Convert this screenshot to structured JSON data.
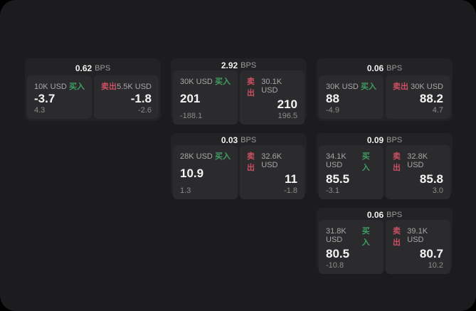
{
  "labels": {
    "bps_unit": "BPS",
    "buy": "买入",
    "sell": "卖出"
  },
  "colors": {
    "canvas": "#000000",
    "page_bg": "#1c1c1e",
    "card_bg": "#232325",
    "panel_bg": "#2b2b2d",
    "buy": "#3f9e63",
    "sell": "#cc4f63",
    "primary_text": "#f5f5f5",
    "secondary_text": "#a8a8a8",
    "muted_text": "#8c8c8c"
  },
  "cards": [
    {
      "bps": "0.62",
      "buy": {
        "amount": "10K USD",
        "price": "-3.7",
        "delta": "4.3"
      },
      "sell": {
        "amount": "5.5K USD",
        "price": "-1.8",
        "delta": "-2.6"
      }
    },
    {
      "bps": "2.92",
      "buy": {
        "amount": "30K USD",
        "price": "201",
        "delta": "-188.1"
      },
      "sell": {
        "amount": "30.1K USD",
        "price": "210",
        "delta": "196.5"
      }
    },
    {
      "bps": "0.06",
      "buy": {
        "amount": "30K USD",
        "price": "88",
        "delta": "-4.9"
      },
      "sell": {
        "amount": "30K USD",
        "price": "88.2",
        "delta": "4.7"
      }
    },
    {
      "bps": "0.03",
      "buy": {
        "amount": "28K USD",
        "price": "10.9",
        "delta": "1.3"
      },
      "sell": {
        "amount": "32.6K USD",
        "price": "11",
        "delta": "-1.8"
      }
    },
    {
      "bps": "0.09",
      "buy": {
        "amount": "34.1K USD",
        "price": "85.5",
        "delta": "-3.1"
      },
      "sell": {
        "amount": "32.8K USD",
        "price": "85.8",
        "delta": "3.0"
      }
    },
    {
      "bps": "0.06",
      "buy": {
        "amount": "31.8K USD",
        "price": "80.5",
        "delta": "-10.8"
      },
      "sell": {
        "amount": "39.1K USD",
        "price": "80.7",
        "delta": "10.2"
      }
    }
  ]
}
